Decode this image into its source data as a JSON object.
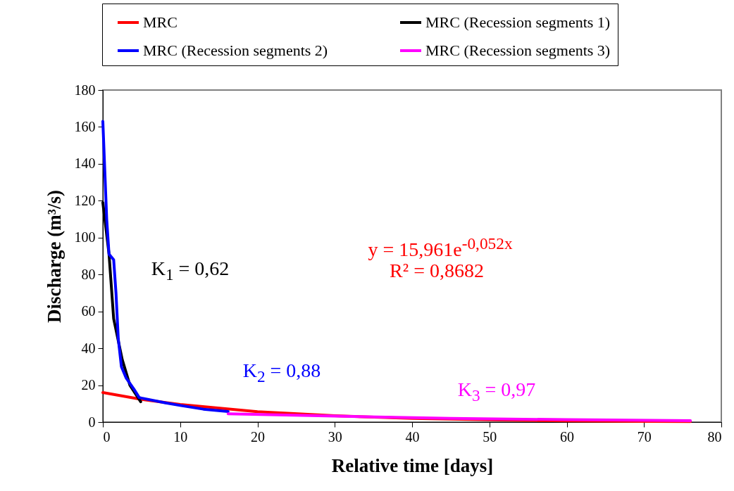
{
  "chart_data": {
    "type": "line",
    "xlabel": "Relative time [days]",
    "ylabel": "Discharge (m³/s)",
    "xlim": [
      0,
      80
    ],
    "xticks": [
      0,
      10,
      20,
      30,
      40,
      50,
      60,
      70,
      80
    ],
    "ylim": [
      0,
      180
    ],
    "yticks": [
      0,
      20,
      40,
      60,
      80,
      100,
      120,
      140,
      160,
      180
    ],
    "grid": false,
    "legend": "top",
    "series": [
      {
        "name": "MRC",
        "color": "#ff0000",
        "x": [
          0,
          5,
          10,
          20,
          30,
          40,
          50,
          60,
          70,
          76
        ],
        "values": [
          16,
          12.3,
          9.5,
          5.6,
          3.4,
          2,
          1.2,
          0.7,
          0.4,
          0.3
        ]
      },
      {
        "name": "MRC (Recession segments 1)",
        "color": "#000000",
        "x": [
          0,
          0.8,
          1.4,
          2.5,
          3.5,
          4.9
        ],
        "values": [
          119,
          91,
          56,
          34,
          20,
          11
        ]
      },
      {
        "name": "MRC (Recession segments 2)",
        "color": "#0000ff",
        "x": [
          0,
          0.5,
          0.8,
          1.4,
          1.7,
          2,
          2.4,
          3,
          4,
          4.7,
          5,
          8,
          10,
          13,
          16.2
        ],
        "values": [
          163,
          110,
          91,
          88,
          70,
          45,
          30,
          24,
          18,
          13.3,
          13,
          10.5,
          9,
          7,
          5.7
        ]
      },
      {
        "name": "MRC (Recession segments 3)",
        "color": "#ff00ff",
        "x": [
          16.2,
          30,
          45,
          60,
          76
        ],
        "values": [
          4.5,
          3.2,
          2,
          1.3,
          0.8
        ]
      }
    ],
    "annotations": [
      "K$_{1}$ = 0,62",
      "K$_{2}$ = 0,88",
      "K$_{3}$ = 0,97",
      "y = 15,961e$^{-0,052x}$",
      "R² = 0,8682"
    ]
  }
}
